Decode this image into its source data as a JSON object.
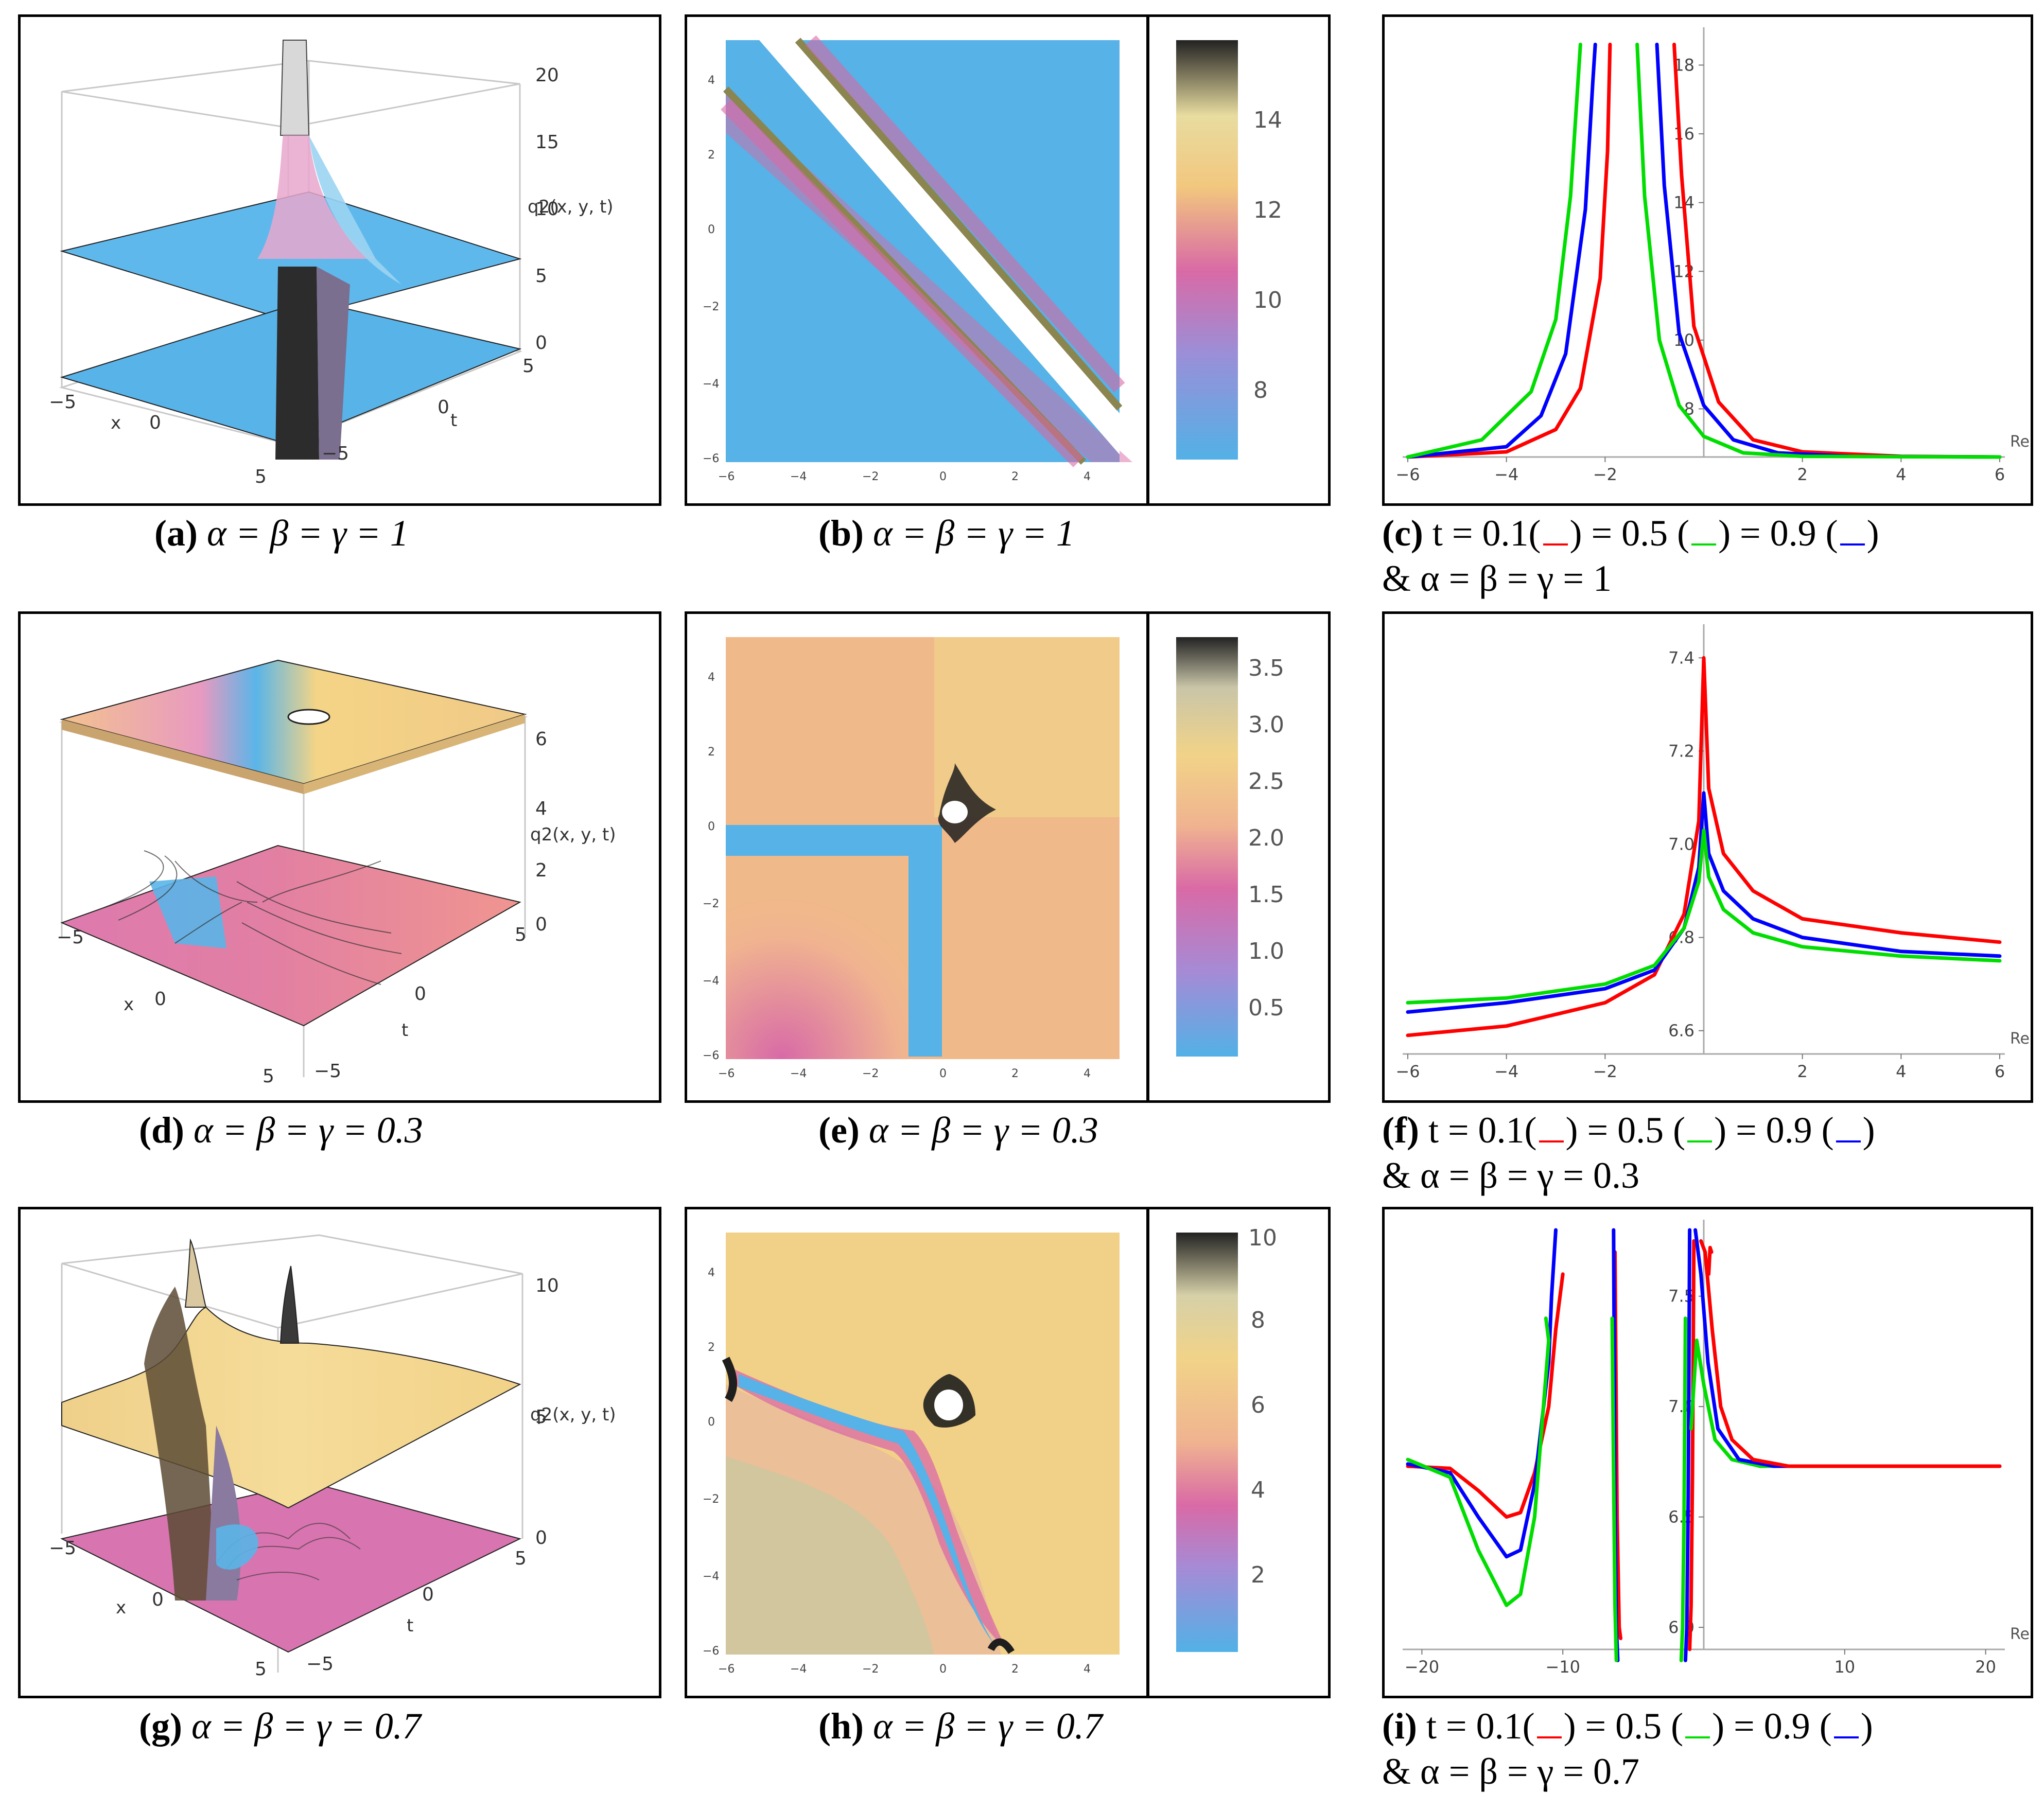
{
  "colors": {
    "sky": "#52b1e6",
    "pink": "#d96aa6",
    "peach": "#f2b98a",
    "sand": "#f1d388",
    "gray": "#c8c8c8",
    "red": "#ff0000",
    "green": "#00dd00",
    "blue": "#0000ff"
  },
  "rows": [
    {
      "surface": {
        "caption_letter": "(a)",
        "caption_params": "α = β = γ = 1",
        "zlabel": "q2(x, y, t)",
        "xlabel": "x",
        "tlabel": "t",
        "zticks": [
          "20",
          "15",
          "10",
          "5",
          "0"
        ],
        "xticks": [
          "−5",
          "0",
          "5"
        ],
        "tticks": [
          "5",
          "0",
          "−5"
        ]
      },
      "density": {
        "caption_letter": "(b)",
        "caption_params": "α = β = γ = 1",
        "xticks": [
          "−6",
          "−4",
          "−2",
          "0",
          "2",
          "4"
        ],
        "yticks": [
          "4",
          "2",
          "0",
          "−2",
          "−4",
          "−6"
        ],
        "colorbar_ticks": [
          "14",
          "12",
          "10",
          "8"
        ]
      },
      "lines": {
        "caption_letter": "(c)",
        "caption_line1": "t = 0.1(",
        "caption_mid1": ") = 0.5 (",
        "caption_mid2": ") = 0.9 (",
        "caption_end": ")",
        "caption_line2": "& α =  β =  γ =  1"
      }
    },
    {
      "surface": {
        "caption_letter": "(d)",
        "caption_params": "α = β = γ = 0.3",
        "zlabel": "q2(x, y, t)",
        "xlabel": "x",
        "tlabel": "t",
        "zticks": [
          "6",
          "4",
          "2",
          "0"
        ],
        "xticks": [
          "−5",
          "0",
          "5"
        ],
        "tticks": [
          "5",
          "0",
          "−5"
        ]
      },
      "density": {
        "caption_letter": "(e)",
        "caption_params": "α = β = γ = 0.3",
        "xticks": [
          "−6",
          "−4",
          "−2",
          "0",
          "2",
          "4"
        ],
        "yticks": [
          "4",
          "2",
          "0",
          "−2",
          "−4",
          "−6"
        ],
        "colorbar_ticks": [
          "3.5",
          "3.0",
          "2.5",
          "2.0",
          "1.5",
          "1.0",
          "0.5"
        ]
      },
      "lines": {
        "caption_letter": "(f)",
        "caption_line1": "t = 0.1(",
        "caption_mid1": ") = 0.5 (",
        "caption_mid2": ") = 0.9 (",
        "caption_end": ")",
        "caption_line2": "& α =  β =  γ =  0.3"
      }
    },
    {
      "surface": {
        "caption_letter": "(g)",
        "caption_params": "α = β = γ = 0.7",
        "zlabel": "q2(x, y, t)",
        "xlabel": "x",
        "tlabel": "t",
        "zticks": [
          "10",
          "5",
          "0"
        ],
        "xticks": [
          "−5",
          "0",
          "5"
        ],
        "tticks": [
          "5",
          "0",
          "−5"
        ]
      },
      "density": {
        "caption_letter": "(h)",
        "caption_params": "α = β = γ = 0.7",
        "xticks": [
          "−6",
          "−4",
          "−2",
          "0",
          "2",
          "4"
        ],
        "yticks": [
          "4",
          "2",
          "0",
          "−2",
          "−4",
          "−6"
        ],
        "colorbar_ticks": [
          "10",
          "8",
          "6",
          "4",
          "2"
        ]
      },
      "lines": {
        "caption_letter": "(i)",
        "caption_line1": "t = 0.1(",
        "caption_mid1": ") = 0.5 (",
        "caption_mid2": ") = 0.9 (",
        "caption_end": ")",
        "caption_line2": "& α =  β =  γ =  0.7"
      }
    }
  ],
  "chart_data": [
    {
      "type": "line",
      "xlabel": "Re(z)",
      "xlim": [
        -6,
        6
      ],
      "ylim": [
        6.6,
        18.8
      ],
      "xticks": [
        "−6",
        "−4",
        "−2",
        "2",
        "4",
        "6"
      ],
      "yticks": [
        "8",
        "10",
        "12",
        "14",
        "16",
        "18"
      ],
      "series": [
        {
          "color": "red",
          "x": [
            -6,
            -4,
            -3,
            -2.5,
            -2.1,
            -1.95,
            -1.9
          ],
          "y": [
            6.6,
            6.75,
            7.4,
            8.6,
            11.8,
            15.5,
            18.6
          ]
        },
        {
          "color": "red",
          "x": [
            -0.6,
            -0.45,
            -0.2,
            0.3,
            1,
            2,
            4,
            6
          ],
          "y": [
            18.6,
            14.8,
            10.4,
            8.2,
            7.1,
            6.75,
            6.62,
            6.6
          ]
        },
        {
          "color": "blue",
          "x": [
            -6,
            -4,
            -3.3,
            -2.8,
            -2.4,
            -2.25,
            -2.2
          ],
          "y": [
            6.6,
            6.9,
            7.8,
            9.6,
            13.8,
            17.5,
            18.6
          ]
        },
        {
          "color": "blue",
          "x": [
            -0.95,
            -0.8,
            -0.5,
            0,
            0.6,
            1.5,
            3,
            6
          ],
          "y": [
            18.6,
            14.5,
            10.2,
            8.1,
            7.1,
            6.72,
            6.62,
            6.6
          ]
        },
        {
          "color": "green",
          "x": [
            -6,
            -4.5,
            -3.5,
            -3,
            -2.7,
            -2.55,
            -2.5
          ],
          "y": [
            6.6,
            7.1,
            8.5,
            10.6,
            14.2,
            17.5,
            18.6
          ]
        },
        {
          "color": "green",
          "x": [
            -1.35,
            -1.2,
            -0.9,
            -0.5,
            0,
            0.8,
            2,
            6
          ],
          "y": [
            18.6,
            14.2,
            10.0,
            8.1,
            7.2,
            6.72,
            6.62,
            6.6
          ]
        }
      ]
    },
    {
      "type": "line",
      "xlabel": "Re(z)",
      "xlim": [
        -6,
        6
      ],
      "ylim": [
        6.55,
        7.45
      ],
      "xticks": [
        "−6",
        "−4",
        "−2",
        "2",
        "4",
        "6"
      ],
      "yticks": [
        "6.6",
        "6.8",
        "7.0",
        "7.2",
        "7.4"
      ],
      "series": [
        {
          "color": "red",
          "x": [
            -6,
            -4,
            -2,
            -1,
            -0.4,
            -0.1,
            0,
            0.1,
            0.4,
            1,
            2,
            4,
            6
          ],
          "y": [
            6.59,
            6.61,
            6.66,
            6.72,
            6.85,
            7.05,
            7.4,
            7.12,
            6.98,
            6.9,
            6.84,
            6.81,
            6.79
          ]
        },
        {
          "color": "blue",
          "x": [
            -6,
            -4,
            -2,
            -1,
            -0.4,
            -0.1,
            0,
            0.1,
            0.4,
            1,
            2,
            4,
            6
          ],
          "y": [
            6.64,
            6.66,
            6.69,
            6.73,
            6.82,
            6.95,
            7.11,
            6.98,
            6.9,
            6.84,
            6.8,
            6.77,
            6.76
          ]
        },
        {
          "color": "green",
          "x": [
            -6,
            -4,
            -2,
            -1,
            -0.4,
            -0.1,
            0,
            0.1,
            0.4,
            1,
            2,
            4,
            6
          ],
          "y": [
            6.66,
            6.67,
            6.7,
            6.74,
            6.82,
            6.92,
            7.03,
            6.93,
            6.86,
            6.81,
            6.78,
            6.76,
            6.75
          ]
        }
      ]
    },
    {
      "type": "line",
      "xlabel": "Re(z)",
      "xlim": [
        -21,
        21
      ],
      "ylim": [
        5.9,
        7.8
      ],
      "xticks": [
        "−20",
        "−10",
        "10",
        "20"
      ],
      "yticks": [
        "6.0",
        "6.5",
        "7.0",
        "7.5"
      ],
      "series": [
        {
          "color": "red",
          "x": [
            -21,
            -18,
            -16,
            -14,
            -13,
            -12,
            -11,
            -10.5,
            -10
          ],
          "y": [
            6.73,
            6.72,
            6.62,
            6.5,
            6.52,
            6.7,
            7.0,
            7.35,
            7.6
          ]
        },
        {
          "color": "blue",
          "x": [
            -21,
            -18,
            -16,
            -14,
            -13,
            -12,
            -11,
            -10.8,
            -10.5
          ],
          "y": [
            6.74,
            6.7,
            6.5,
            6.32,
            6.35,
            6.65,
            7.2,
            7.5,
            7.8
          ]
        },
        {
          "color": "green",
          "x": [
            -21,
            -18,
            -16,
            -14,
            -13,
            -12,
            -11.5,
            -11,
            -11.2
          ],
          "y": [
            6.76,
            6.68,
            6.35,
            6.1,
            6.15,
            6.5,
            6.9,
            7.3,
            7.4
          ]
        },
        {
          "color": "red",
          "x": [
            -6.3,
            -6.15,
            -6.0,
            -5.9
          ],
          "y": [
            7.7,
            6.5,
            6.0,
            5.95
          ]
        },
        {
          "color": "blue",
          "x": [
            -6.4,
            -6.3,
            -6.2,
            -6.1
          ],
          "y": [
            7.8,
            6.6,
            6.0,
            5.85
          ]
        },
        {
          "color": "green",
          "x": [
            -6.5,
            -6.4,
            -6.3,
            -6.2
          ],
          "y": [
            7.4,
            6.7,
            6.1,
            5.85
          ]
        },
        {
          "color": "green",
          "x": [
            -1.6,
            -1.5,
            -1.4,
            -1.3
          ],
          "y": [
            5.85,
            6.0,
            6.5,
            7.4
          ]
        },
        {
          "color": "blue",
          "x": [
            -1.3,
            -1.2,
            -1.1,
            -1.0
          ],
          "y": [
            5.85,
            6.0,
            6.6,
            7.8
          ]
        },
        {
          "color": "red",
          "x": [
            -1.0,
            -0.9,
            -0.8,
            -0.7
          ],
          "y": [
            5.9,
            6.1,
            6.7,
            7.75
          ]
        },
        {
          "color": "green",
          "x": [
            -0.9,
            -0.5,
            0,
            0.8,
            2,
            4,
            8,
            14,
            21
          ],
          "y": [
            6.9,
            7.3,
            7.1,
            6.85,
            6.76,
            6.73,
            6.73,
            6.73,
            6.73
          ]
        },
        {
          "color": "blue",
          "x": [
            -0.6,
            -0.2,
            0.3,
            1,
            2.5,
            5,
            10,
            21
          ],
          "y": [
            7.8,
            7.6,
            7.2,
            6.9,
            6.76,
            6.73,
            6.73,
            6.73
          ]
        },
        {
          "color": "red",
          "x": [
            -0.2,
            0.1,
            0.6,
            1.2,
            2,
            3.5,
            6,
            10,
            21
          ],
          "y": [
            7.75,
            7.7,
            7.35,
            7.0,
            6.85,
            6.76,
            6.73,
            6.73,
            6.73
          ]
        },
        {
          "color": "red",
          "x": [
            0.35,
            0.45,
            0.55
          ],
          "y": [
            7.6,
            7.72,
            7.7
          ]
        }
      ]
    }
  ]
}
